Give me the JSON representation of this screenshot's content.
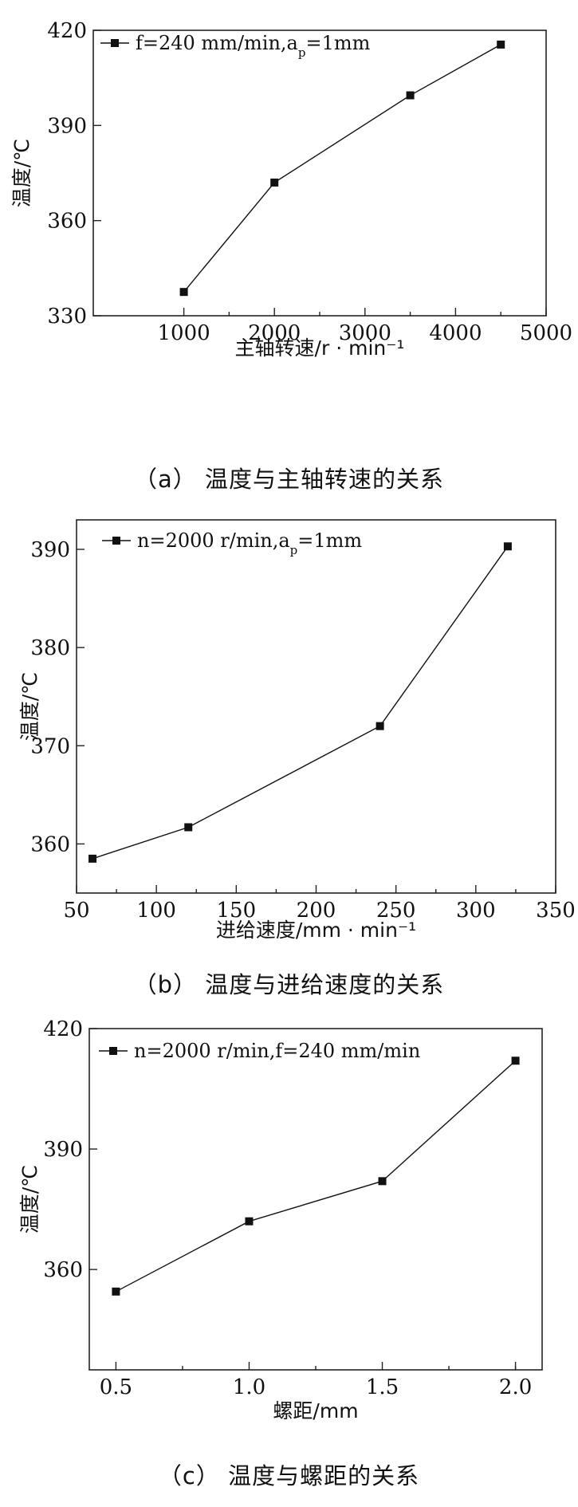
{
  "chart_data": [
    {
      "type": "line",
      "id": "a",
      "caption": "（a） 温度与主轴转速的关系",
      "xlabel": "主轴转速/r · min⁻¹",
      "ylabel": "温度/℃",
      "xlim": [
        0,
        5000
      ],
      "ylim": [
        330,
        420
      ],
      "xticks": [
        1000,
        2000,
        3000,
        4000,
        5000
      ],
      "xtick_labels": [
        "1000",
        "2000",
        "3000",
        "4000",
        "5000"
      ],
      "yticks": [
        330,
        360,
        390,
        420
      ],
      "ytick_labels": [
        "330",
        "360",
        "390",
        "420"
      ],
      "legend": {
        "line_marker": "-■-",
        "text": "f=240 mm/min,a",
        "subscript": "p",
        "suffix": "=1mm"
      },
      "series": [
        {
          "x": [
            1000,
            2000,
            3500,
            4500
          ],
          "y": [
            337.5,
            372,
            399.5,
            415.5
          ]
        }
      ]
    },
    {
      "type": "line",
      "id": "b",
      "caption": "（b） 温度与进给速度的关系",
      "xlabel": "进给速度/mm · min⁻¹",
      "ylabel": "温度/℃",
      "xlim": [
        50,
        350
      ],
      "ylim": [
        355,
        393
      ],
      "xticks": [
        50,
        100,
        150,
        200,
        250,
        300,
        350
      ],
      "xtick_labels": [
        "50",
        "100",
        "150",
        "200",
        "250",
        "300",
        "350"
      ],
      "yticks": [
        360,
        370,
        380,
        390
      ],
      "ytick_labels": [
        "360",
        "370",
        "380",
        "390"
      ],
      "legend": {
        "line_marker": "-■-",
        "text": "n=2000 r/min,a",
        "subscript": "p",
        "suffix": "=1mm"
      },
      "series": [
        {
          "x": [
            60,
            120,
            240,
            320
          ],
          "y": [
            358.5,
            361.7,
            372,
            390.3
          ]
        }
      ]
    },
    {
      "type": "line",
      "id": "c",
      "caption": "（c） 温度与螺距的关系",
      "xlabel": "螺距/mm",
      "ylabel": "温度/℃",
      "xlim": [
        0.4,
        2.1
      ],
      "ylim": [
        335,
        420
      ],
      "xticks": [
        0.5,
        1.0,
        1.5,
        2.0
      ],
      "xtick_labels": [
        "0.5",
        "1.0",
        "1.5",
        "2.0"
      ],
      "yticks": [
        360,
        390,
        420
      ],
      "ytick_labels": [
        "360",
        "390",
        "420"
      ],
      "legend": {
        "line_marker": "-■-",
        "text": "n=2000 r/min,f=240 mm/min",
        "subscript": "",
        "suffix": ""
      },
      "series": [
        {
          "x": [
            0.5,
            1.0,
            1.5,
            2.0
          ],
          "y": [
            354.5,
            372,
            382,
            412
          ]
        }
      ]
    }
  ]
}
